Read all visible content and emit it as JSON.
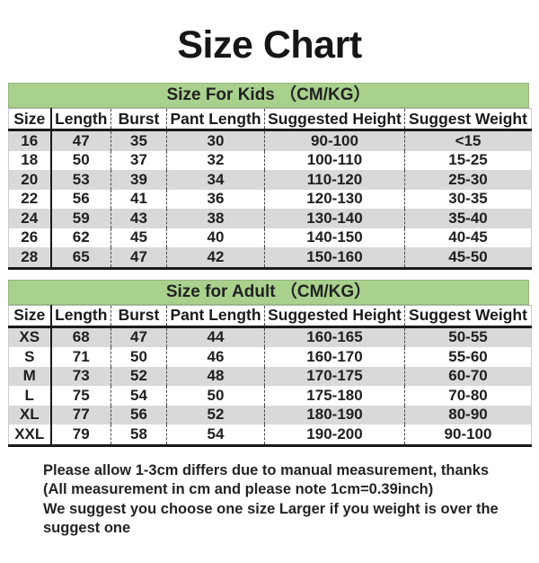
{
  "title": "Size Chart",
  "chart_data": [
    {
      "type": "table",
      "title": "Size For Kids （CM/KG）",
      "columns": [
        "Size",
        "Length",
        "Burst",
        "Pant Length",
        "Suggested Height",
        "Suggest Weight"
      ],
      "rows": [
        [
          "16",
          "47",
          "35",
          "30",
          "90-100",
          "<15"
        ],
        [
          "18",
          "50",
          "37",
          "32",
          "100-110",
          "15-25"
        ],
        [
          "20",
          "53",
          "39",
          "34",
          "110-120",
          "25-30"
        ],
        [
          "22",
          "56",
          "41",
          "36",
          "120-130",
          "30-35"
        ],
        [
          "24",
          "59",
          "43",
          "38",
          "130-140",
          "35-40"
        ],
        [
          "26",
          "62",
          "45",
          "40",
          "140-150",
          "40-45"
        ],
        [
          "28",
          "65",
          "47",
          "42",
          "150-160",
          "45-50"
        ]
      ]
    },
    {
      "type": "table",
      "title": "Size for Adult （CM/KG）",
      "columns": [
        "Size",
        "Length",
        "Burst",
        "Pant Length",
        "Suggested Height",
        "Suggest Weight"
      ],
      "rows": [
        [
          "XS",
          "68",
          "47",
          "44",
          "160-165",
          "50-55"
        ],
        [
          "S",
          "71",
          "50",
          "46",
          "160-170",
          "55-60"
        ],
        [
          "M",
          "73",
          "52",
          "48",
          "170-175",
          "60-70"
        ],
        [
          "L",
          "75",
          "54",
          "50",
          "175-180",
          "70-80"
        ],
        [
          "XL",
          "77",
          "56",
          "52",
          "180-190",
          "80-90"
        ],
        [
          "XXL",
          "79",
          "58",
          "54",
          "190-200",
          "90-100"
        ]
      ]
    }
  ],
  "notes": [
    "Please allow 1-3cm differs due to manual measurement, thanks",
    "(All measurement in cm and please note 1cm=0.39inch)",
    "We suggest you choose one size Larger if you weight is over the suggest one"
  ],
  "colors": {
    "section_header_bg": "#a9d18e",
    "row_alt_bg": "#d9d9d9",
    "table_line": "#1a1a1a",
    "text": "#1a1a1a",
    "background": "#ffffff"
  }
}
